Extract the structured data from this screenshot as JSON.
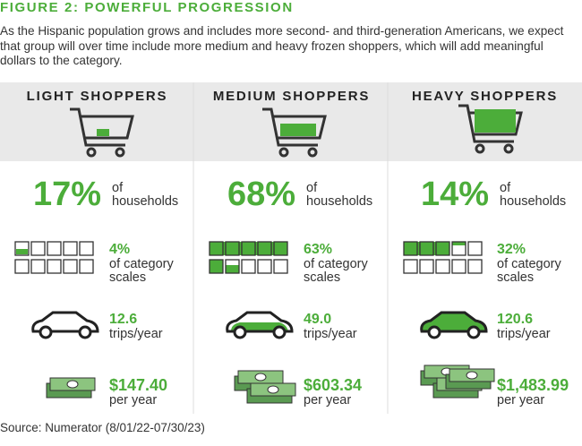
{
  "header": {
    "title": "FIGURE 2: POWERFUL PROGRESSION",
    "intro": "As the Hispanic population grows and includes more second- and third-generation Americans, we expect that group will over time include more medium and heavy frozen shoppers, which will add meaningful dollars to the category."
  },
  "columns": [
    {
      "heading": "LIGHT SHOPPERS",
      "households": "17%",
      "households_label": "of households",
      "scale": "4%",
      "scale_label": "of category scales",
      "trips": "12.6",
      "trips_label": "trips/year",
      "spend": "$147.40",
      "spend_label": "per year"
    },
    {
      "heading": "MEDIUM SHOPPERS",
      "households": "68%",
      "households_label": "of households",
      "scale": "63%",
      "scale_label": "of category scales",
      "trips": "49.0",
      "trips_label": "trips/year",
      "spend": "$603.34",
      "spend_label": "per year"
    },
    {
      "heading": "HEAVY SHOPPERS",
      "households": "14%",
      "households_label": "of households",
      "scale": "32%",
      "scale_label": "of category scales",
      "trips": "120.6",
      "trips_label": "trips/year",
      "spend": "$1,483.99",
      "spend_label": "per year"
    }
  ],
  "footer": {
    "source": "Source: Numerator (8/01/22-07/30/23)"
  }
}
